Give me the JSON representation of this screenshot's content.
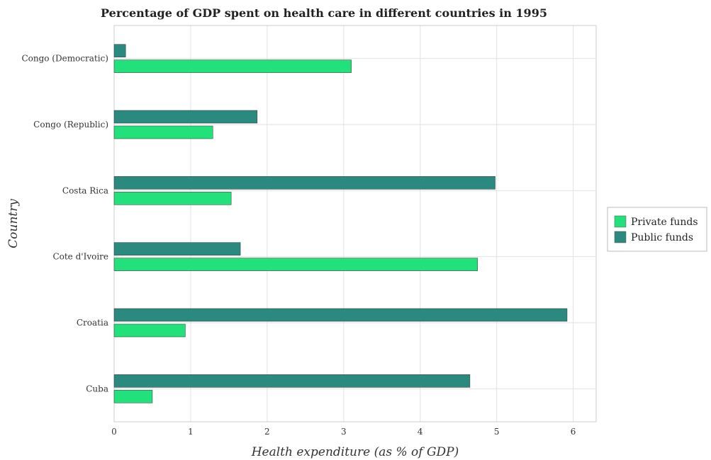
{
  "chart_data": {
    "type": "bar",
    "orientation": "horizontal",
    "title": "Percentage of GDP spent on health care in different countries in 1995",
    "xlabel": "Health expenditure (as % of GDP)",
    "ylabel": "Country",
    "xlim": [
      0,
      6.3
    ],
    "xticks": [
      0,
      1,
      2,
      3,
      4,
      5,
      6
    ],
    "grid": true,
    "legend_position": "right",
    "categories": [
      "Congo (Democratic)",
      "Congo (Republic)",
      "Costa Rica",
      "Cote d'Ivoire",
      "Croatia",
      "Cuba"
    ],
    "series": [
      {
        "name": "Private funds",
        "color": "#22e07a",
        "values": [
          3.1,
          1.29,
          1.53,
          4.75,
          0.93,
          0.5
        ]
      },
      {
        "name": "Public funds",
        "color": "#2a8a80",
        "values": [
          0.15,
          1.87,
          4.98,
          1.65,
          5.92,
          4.65
        ]
      }
    ]
  }
}
